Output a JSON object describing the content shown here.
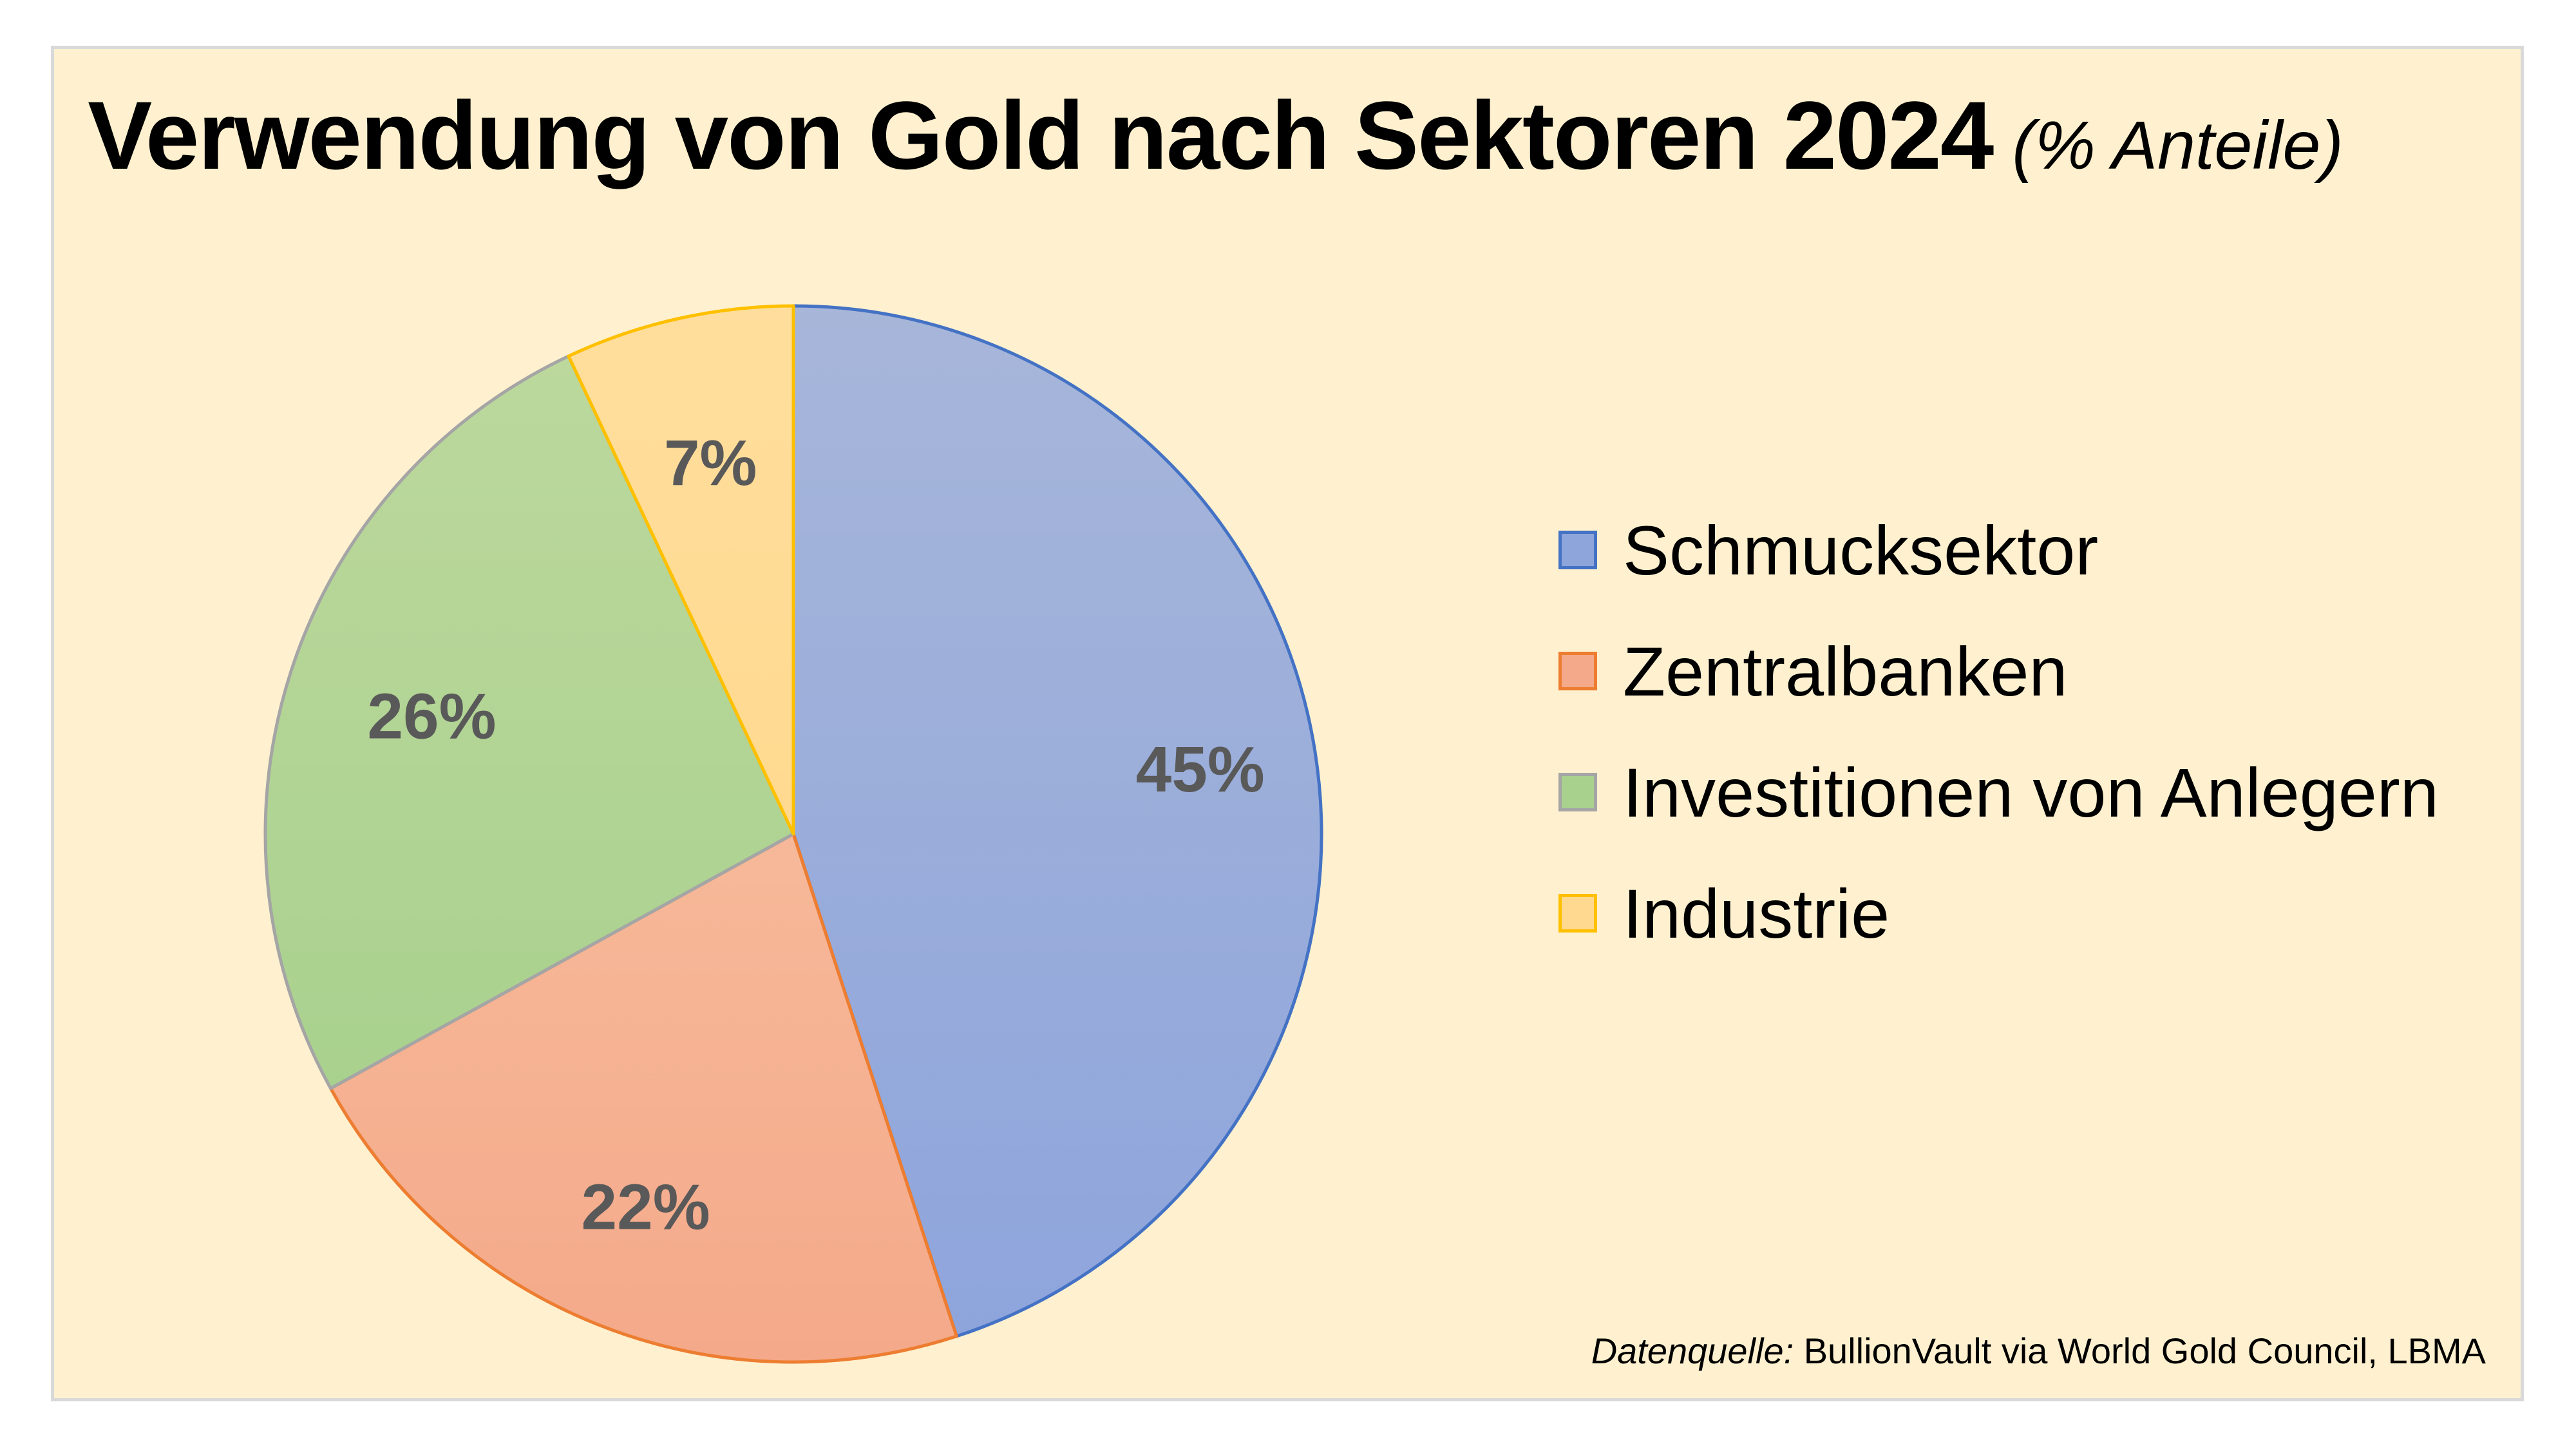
{
  "chart_data": {
    "type": "pie",
    "title": "Verwendung von Gold nach Sektoren 2024",
    "subtitle": "(% Anteile)",
    "categories": [
      "Schmucksektor",
      "Zentralbanken",
      "Investitionen von Anlegern",
      "Industrie"
    ],
    "values": [
      45,
      22,
      26,
      7
    ],
    "data_labels": [
      "45%",
      "22%",
      "26%",
      "7%"
    ],
    "colors": [
      "#8ea5dc",
      "#f4a98a",
      "#a9d18e",
      "#ffd98f"
    ],
    "edge_colors": [
      "#4472c4",
      "#ed7d31",
      "#a5a5a5",
      "#ffc000"
    ],
    "start_angle": "12 o'clock",
    "direction": "clockwise",
    "legend": "right"
  },
  "source": {
    "label": "Datenquelle:",
    "text": " BullionVault via World Gold Council, LBMA"
  }
}
